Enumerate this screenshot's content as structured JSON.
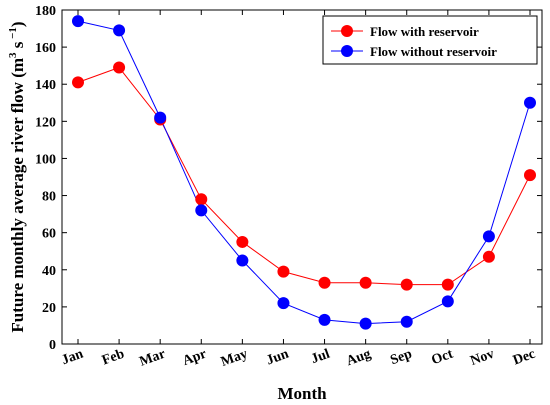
{
  "chart_data": {
    "type": "line",
    "categories": [
      "Jan",
      "Feb",
      "Mar",
      "Apr",
      "May",
      "Jun",
      "Jul",
      "Aug",
      "Sep",
      "Oct",
      "Nov",
      "Dec"
    ],
    "series": [
      {
        "name": "Flow with reservoir",
        "color": "#ff0000",
        "values": [
          141,
          149,
          121,
          78,
          55,
          39,
          33,
          33,
          32,
          32,
          47,
          91
        ]
      },
      {
        "name": "Flow without reservoir",
        "color": "#0000ff",
        "values": [
          174,
          169,
          122,
          72,
          45,
          22,
          13,
          11,
          12,
          23,
          58,
          130
        ]
      }
    ],
    "xlabel": "Month",
    "ylabel_text": "Future monthly average river flow (m",
    "ylabel_unit_sup1": "3",
    "ylabel_unit_mid": " s",
    "ylabel_unit_sup2": " −1",
    "ylabel_close": ")",
    "ylim": [
      0,
      180
    ],
    "yticks": [
      0,
      20,
      40,
      60,
      80,
      100,
      120,
      140,
      160,
      180
    ],
    "grid": false,
    "legend_position": "top-right"
  }
}
